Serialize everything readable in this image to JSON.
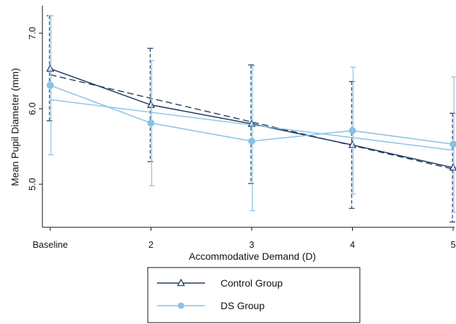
{
  "chart_data": {
    "type": "line",
    "xlabel": "Accommodative Demand (D)",
    "ylabel": "Mean Pupil Diameter (mm)",
    "x_categories": [
      "Baseline",
      "2",
      "3",
      "4",
      "5"
    ],
    "ylim": [
      4.8,
      7.4
    ],
    "yticks": [
      "5.0",
      "6.0",
      "7.0"
    ],
    "grid": false,
    "legend_position": "bottom",
    "series": [
      {
        "name": "Control Group",
        "color": "#1f3a5f",
        "marker": "triangle-open",
        "values": [
          6.53,
          6.05,
          5.8,
          5.52,
          5.22
        ],
        "error_low": [
          5.84,
          5.3,
          5.01,
          4.68,
          4.5
        ],
        "error_high": [
          7.23,
          6.8,
          6.58,
          6.36,
          5.94
        ],
        "fit_line": [
          6.45,
          5.2
        ],
        "fit_style": "dashed"
      },
      {
        "name": "DS Group",
        "color": "#87c1e6",
        "marker": "circle-filled",
        "values": [
          6.31,
          5.81,
          5.57,
          5.71,
          5.53
        ],
        "error_low": [
          5.39,
          4.98,
          4.65,
          4.87,
          4.63
        ],
        "error_high": [
          7.23,
          6.64,
          6.57,
          6.55,
          6.42
        ],
        "fit_line": [
          6.12,
          5.45
        ],
        "fit_style": "solid"
      }
    ]
  }
}
